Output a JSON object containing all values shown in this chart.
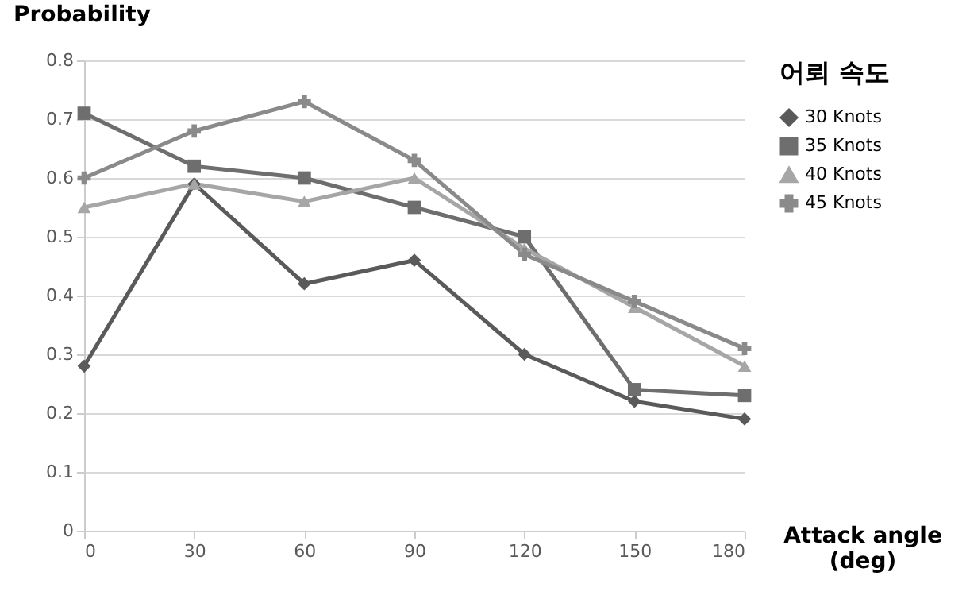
{
  "chart_data": {
    "type": "line",
    "ylabel": "Probability",
    "xlabel": "Attack angle\n(deg)",
    "legend_title": "어뢰 속도",
    "x": [
      0,
      30,
      60,
      90,
      120,
      150,
      180
    ],
    "xlim": [
      0,
      180
    ],
    "xticks": [
      0,
      30,
      60,
      90,
      120,
      150,
      180
    ],
    "ylim": [
      0,
      0.8
    ],
    "yticks": [
      0,
      0.1,
      0.2,
      0.3,
      0.4,
      0.5,
      0.6,
      0.7,
      0.8
    ],
    "grid": "y",
    "legend": "right",
    "series": [
      {
        "name": "30 Knots",
        "color": "#5a5a5a",
        "marker": "diamond",
        "values": [
          0.28,
          0.59,
          0.42,
          0.46,
          0.3,
          0.22,
          0.19
        ]
      },
      {
        "name": "35 Knots",
        "color": "#6e6e6e",
        "marker": "square",
        "values": [
          0.71,
          0.62,
          0.6,
          0.55,
          0.5,
          0.24,
          0.23
        ]
      },
      {
        "name": "40 Knots",
        "color": "#a6a6a6",
        "marker": "triangle",
        "values": [
          0.55,
          0.59,
          0.56,
          0.6,
          0.48,
          0.38,
          0.28
        ]
      },
      {
        "name": "45 Knots",
        "color": "#8a8a8a",
        "marker": "cross",
        "values": [
          0.6,
          0.68,
          0.73,
          0.63,
          0.47,
          0.39,
          0.31
        ]
      }
    ]
  }
}
